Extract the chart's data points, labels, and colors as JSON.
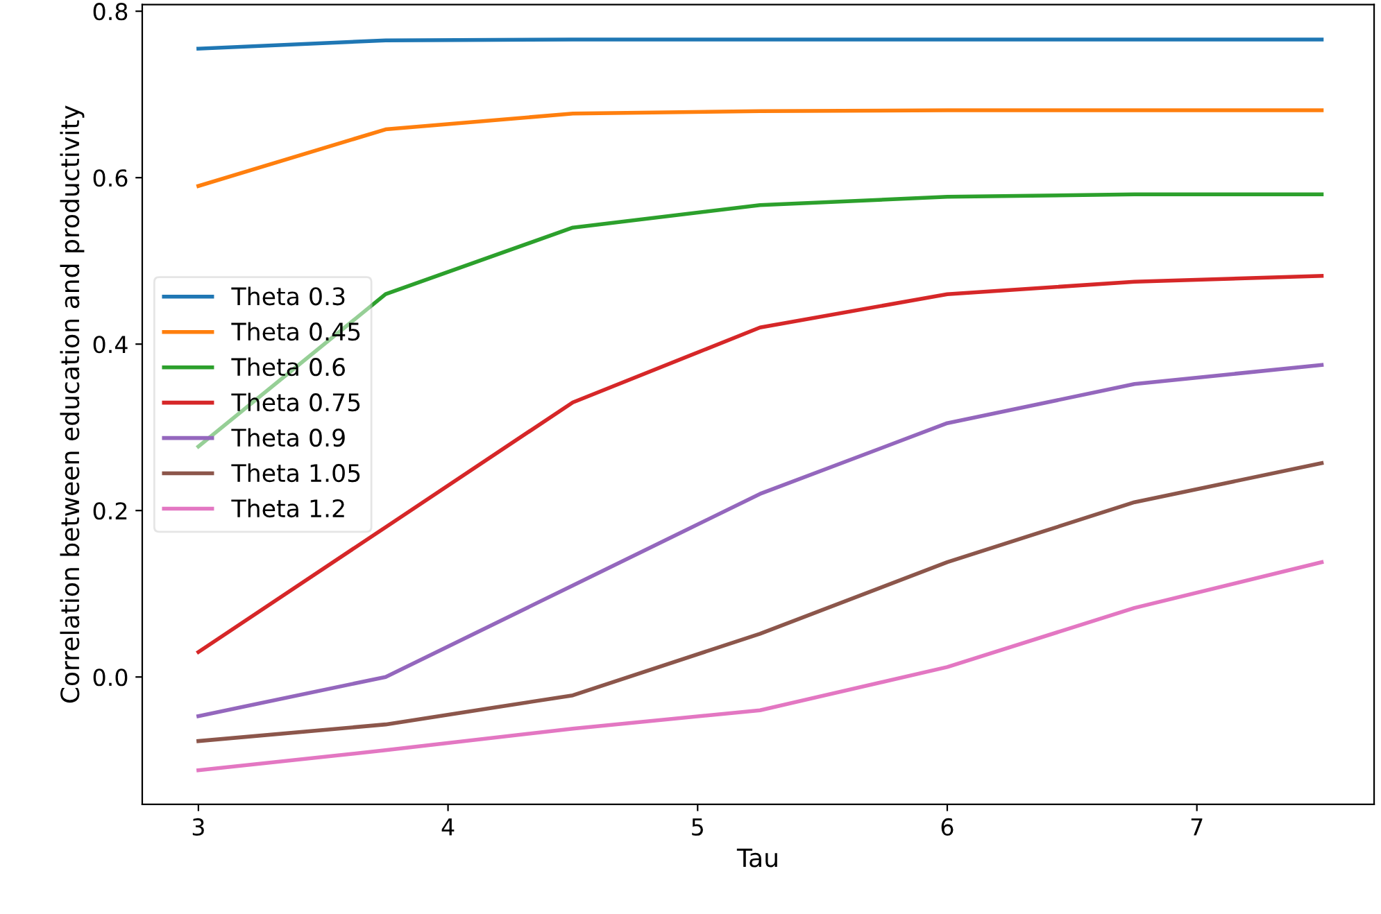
{
  "chart_data": {
    "type": "line",
    "xlabel": "Tau",
    "ylabel": "Correlation between education and productivity",
    "x": [
      3,
      3.75,
      4.5,
      5.25,
      6,
      6.75,
      7.5
    ],
    "xlim": [
      2.775,
      7.71
    ],
    "ylim": [
      -0.153,
      0.808
    ],
    "xticks": [
      3,
      4,
      5,
      6,
      7
    ],
    "yticks": [
      {
        "value": 0,
        "label": "0.0"
      },
      0.2,
      0.4,
      0.6,
      0.8
    ],
    "grid": false,
    "legend": "left",
    "marker": "none",
    "line_style": "solid",
    "series": [
      {
        "name": "Theta 0.3",
        "color": "#1f77b4",
        "values": [
          0.755,
          0.765,
          0.766,
          0.766,
          0.766,
          0.766,
          0.766
        ]
      },
      {
        "name": "Theta 0.45",
        "color": "#ff7f0e",
        "values": [
          0.59,
          0.658,
          0.677,
          0.68,
          0.681,
          0.681,
          0.681
        ]
      },
      {
        "name": "Theta 0.6",
        "color": "#2ca02c",
        "values": [
          0.277,
          0.46,
          0.54,
          0.567,
          0.577,
          0.58,
          0.58
        ]
      },
      {
        "name": "Theta 0.75",
        "color": "#d62728",
        "values": [
          0.03,
          0.18,
          0.33,
          0.42,
          0.46,
          0.475,
          0.482
        ]
      },
      {
        "name": "Theta 0.9",
        "color": "#9467bd",
        "values": [
          -0.047,
          0.0,
          0.11,
          0.22,
          0.305,
          0.352,
          0.375
        ]
      },
      {
        "name": "Theta 1.05",
        "color": "#8c564b",
        "values": [
          -0.077,
          -0.057,
          -0.022,
          0.052,
          0.138,
          0.21,
          0.257
        ]
      },
      {
        "name": "Theta 1.2",
        "color": "#e377c2",
        "values": [
          -0.112,
          -0.088,
          -0.062,
          -0.04,
          0.012,
          0.083,
          0.138
        ]
      }
    ]
  }
}
